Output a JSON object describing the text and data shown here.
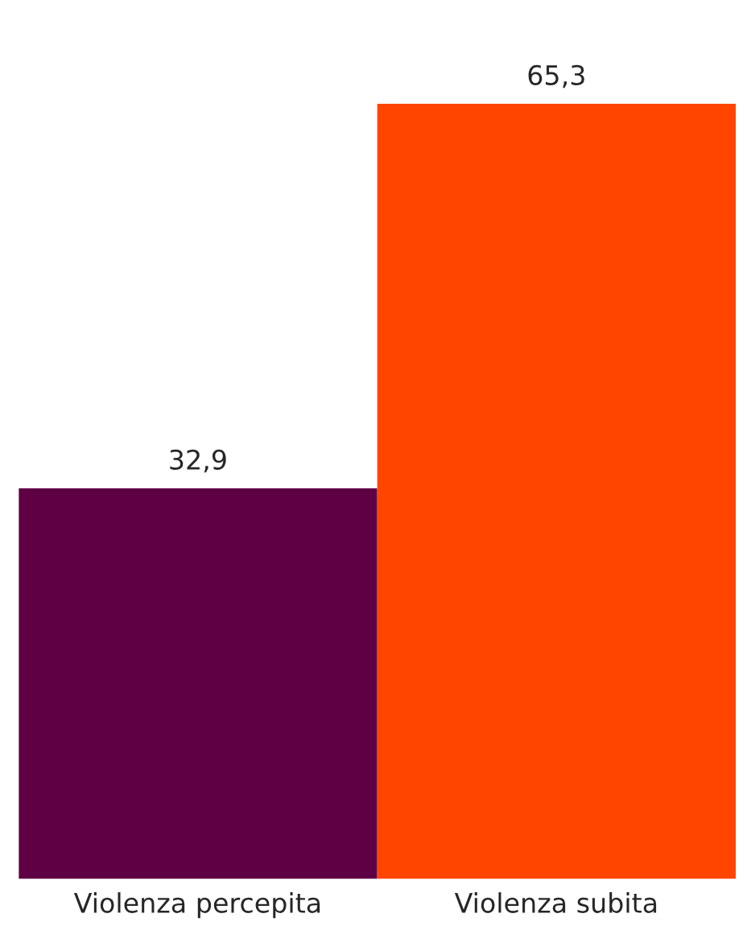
{
  "chart_data": {
    "type": "bar",
    "categories": [
      "Violenza percepita",
      "Violenza subita"
    ],
    "values": [
      32.9,
      65.3
    ],
    "colors": [
      "#5f0044",
      "#ff4500"
    ],
    "value_labels": [
      "32,9",
      "65,3"
    ],
    "grid": false,
    "legend": false
  }
}
